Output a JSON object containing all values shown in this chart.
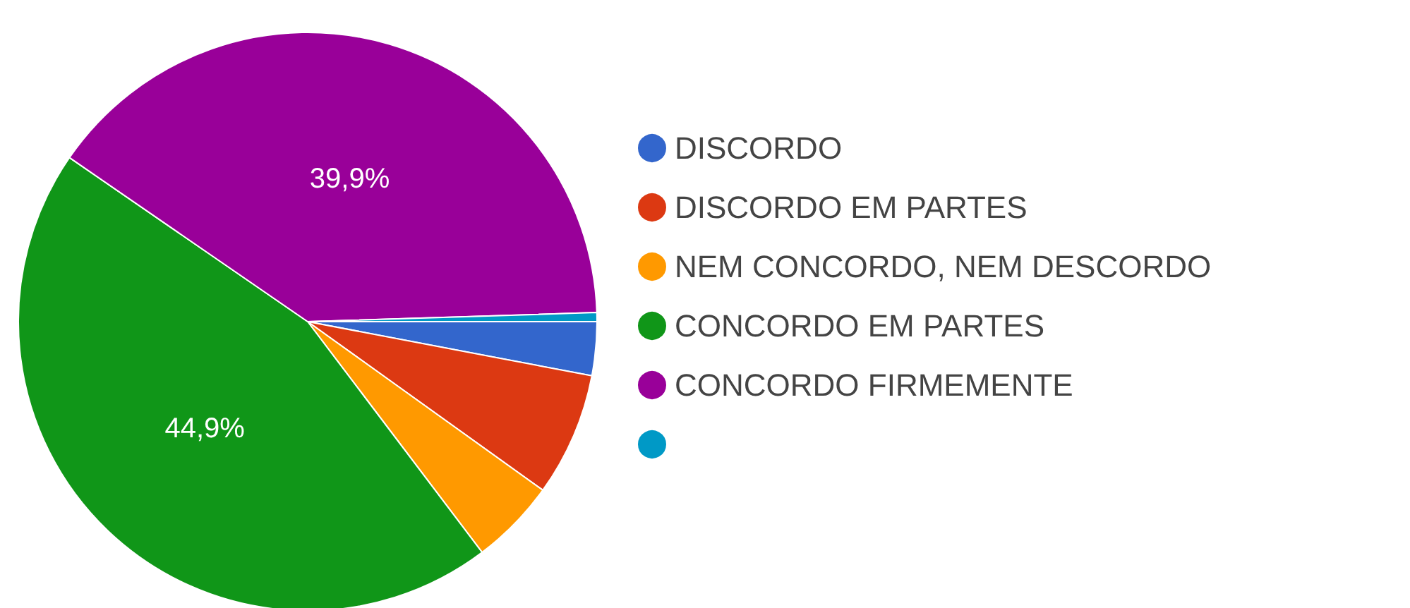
{
  "chart_data": {
    "type": "pie",
    "categories": [
      "DISCORDO",
      "DISCORDO EM PARTES",
      "NEM CONCORDO, NEM DESCORDO",
      "CONCORDO EM PARTES",
      "CONCORDO FIRMEMENTE",
      null
    ],
    "values": [
      3.0,
      6.9,
      4.8,
      44.9,
      39.9,
      0.5
    ],
    "colors": [
      "#3366cc",
      "#dc3912",
      "#ff9900",
      "#109618",
      "#990099",
      "#0099c6"
    ],
    "value_labels": [
      null,
      null,
      null,
      "44,9%",
      "39,9%",
      null
    ],
    "legend": "right"
  }
}
